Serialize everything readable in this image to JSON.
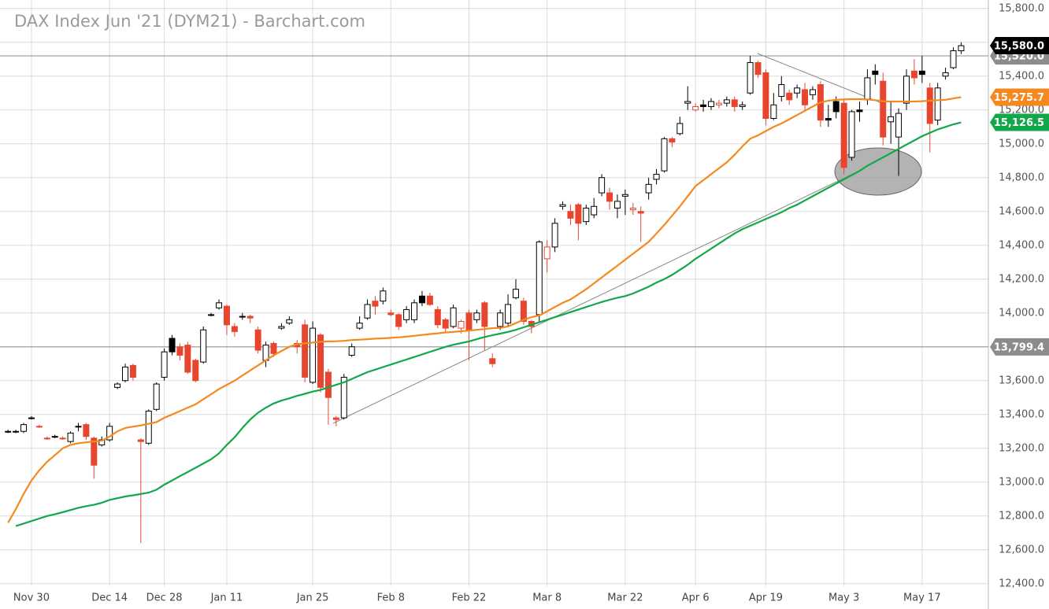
{
  "chart_data": {
    "type": "candlestick",
    "title": "DAX Index Jun '21 (DYM21) - Barchart.com",
    "categories": [
      null,
      null,
      null,
      "Nov 30",
      null,
      null,
      null,
      null,
      null,
      null,
      null,
      null,
      null,
      "Dec 14",
      null,
      null,
      null,
      null,
      null,
      null,
      "Dec 28",
      null,
      null,
      null,
      null,
      null,
      null,
      null,
      "Jan 11",
      null,
      null,
      null,
      null,
      null,
      null,
      null,
      null,
      null,
      null,
      "Jan 25",
      null,
      null,
      null,
      null,
      null,
      null,
      null,
      null,
      null,
      "Feb 8",
      null,
      null,
      null,
      null,
      null,
      null,
      null,
      null,
      null,
      "Feb 22",
      null,
      null,
      null,
      null,
      null,
      null,
      null,
      null,
      null,
      "Mar 8",
      null,
      null,
      null,
      null,
      null,
      null,
      null,
      null,
      null,
      "Mar 22",
      null,
      null,
      null,
      null,
      null,
      null,
      null,
      null,
      "Apr 6",
      null,
      null,
      null,
      null,
      null,
      null,
      null,
      null,
      "Apr 19",
      null,
      null,
      null,
      null,
      null,
      null,
      null,
      null,
      null,
      "May 3",
      null,
      null,
      null,
      null,
      null,
      null,
      null,
      null,
      null,
      "May 17",
      null,
      null,
      null,
      null,
      null
    ],
    "open": [
      13300,
      13300,
      13300,
      13380,
      13330,
      13260,
      13270,
      13260,
      13240,
      13330,
      13340,
      13260,
      13220,
      13250,
      13560,
      13600,
      13690,
      13250,
      13230,
      13430,
      13620,
      13850,
      13800,
      13810,
      13720,
      13710,
      13990,
      14030,
      14040,
      13920,
      13980,
      13980,
      13900,
      13720,
      13820,
      13910,
      13940,
      13820,
      13930,
      13590,
      13870,
      13650,
      13380,
      13380,
      13750,
      13910,
      13970,
      14070,
      14070,
      14000,
      13990,
      13960,
      13960,
      14100,
      14100,
      14020,
      13960,
      13920,
      13910,
      14000,
      13960,
      14060,
      13730,
      13920,
      13940,
      14090,
      14070,
      13950,
      13990,
      14320,
      14390,
      14630,
      14600,
      14640,
      14540,
      14580,
      14710,
      14710,
      14620,
      14690,
      14610,
      14600,
      14710,
      14790,
      14840,
      15030,
      15060,
      15240,
      15200,
      15230,
      15220,
      15230,
      15240,
      15260,
      15220,
      15300,
      15480,
      15420,
      15150,
      15280,
      15300,
      15300,
      15320,
      15290,
      15350,
      15150,
      15250,
      15240,
      14920,
      15200,
      15260,
      15430,
      15370,
      15130,
      15040,
      15240,
      15430,
      15430,
      15330,
      15140,
      15400,
      15450,
      15550
    ],
    "high": [
      13310,
      13310,
      13350,
      13390,
      13340,
      13270,
      13280,
      13270,
      13300,
      13350,
      13350,
      13270,
      13270,
      13350,
      13590,
      13700,
      13700,
      13260,
      13430,
      13590,
      13790,
      13870,
      13820,
      13830,
      13730,
      13920,
      14000,
      14080,
      14050,
      13940,
      14000,
      13990,
      13920,
      13830,
      13830,
      13940,
      13980,
      13840,
      13960,
      13950,
      13880,
      13670,
      13390,
      13640,
      13820,
      13980,
      14080,
      14100,
      14150,
      14020,
      14000,
      14040,
      14080,
      14130,
      14120,
      14040,
      13970,
      14050,
      13960,
      14020,
      14020,
      14070,
      13760,
      14020,
      14110,
      14200,
      14090,
      13960,
      14430,
      14430,
      14560,
      14660,
      14640,
      14650,
      14640,
      14680,
      14820,
      14740,
      14700,
      14730,
      14650,
      14630,
      14800,
      14850,
      15040,
      15040,
      15160,
      15340,
      15240,
      15260,
      15270,
      15260,
      15280,
      15280,
      15250,
      15520,
      15490,
      15440,
      15300,
      15400,
      15320,
      15350,
      15360,
      15340,
      15370,
      15230,
      15280,
      15260,
      15200,
      15250,
      15440,
      15470,
      15420,
      15250,
      15210,
      15440,
      15500,
      15520,
      15360,
      15360,
      15450,
      15570,
      15600
    ],
    "low": [
      13290,
      13290,
      13290,
      13370,
      13320,
      13250,
      13260,
      13250,
      13230,
      13300,
      13250,
      13020,
      13210,
      13240,
      13550,
      13590,
      13600,
      12640,
      13220,
      13420,
      13600,
      13750,
      13720,
      13640,
      13590,
      13700,
      13980,
      14020,
      13870,
      13860,
      13960,
      13940,
      13760,
      13680,
      13740,
      13900,
      13930,
      13760,
      13590,
      13580,
      13530,
      13340,
      13330,
      13370,
      13740,
      13900,
      13960,
      13990,
      14050,
      13980,
      13900,
      13940,
      13940,
      14040,
      14040,
      13910,
      13890,
      13910,
      13880,
      13720,
      13940,
      13780,
      13680,
      13900,
      13920,
      14080,
      13930,
      13880,
      13950,
      14240,
      14360,
      14610,
      14520,
      14430,
      14520,
      14560,
      14690,
      14610,
      14560,
      14580,
      14580,
      14420,
      14670,
      14760,
      14830,
      14980,
      15050,
      15200,
      15190,
      15190,
      15200,
      15210,
      15220,
      15190,
      15200,
      15290,
      15390,
      15110,
      15140,
      15250,
      15230,
      15270,
      15200,
      15260,
      15100,
      15100,
      15150,
      14820,
      14900,
      15130,
      15230,
      15350,
      14990,
      15000,
      14810,
      15200,
      15350,
      15360,
      14950,
      15110,
      15380,
      15440,
      15530
    ],
    "close": [
      13300,
      13300,
      13340,
      13380,
      13330,
      13260,
      13270,
      13260,
      13290,
      13330,
      13270,
      13100,
      13250,
      13330,
      13580,
      13680,
      13620,
      13240,
      13420,
      13580,
      13770,
      13770,
      13750,
      13650,
      13600,
      13900,
      13990,
      14060,
      13930,
      13890,
      13980,
      13970,
      13780,
      13810,
      13760,
      13920,
      13960,
      13800,
      13620,
      13910,
      13560,
      13500,
      13370,
      13620,
      13800,
      13940,
      14050,
      14040,
      14130,
      13990,
      13920,
      14020,
      14060,
      14060,
      14050,
      13930,
      13910,
      14030,
      13950,
      13900,
      14000,
      13920,
      13700,
      14000,
      14050,
      14140,
      13950,
      13920,
      14420,
      14390,
      14530,
      14640,
      14560,
      14530,
      14620,
      14630,
      14800,
      14660,
      14660,
      14700,
      14620,
      14590,
      14760,
      14820,
      15030,
      15010,
      15120,
      15250,
      15220,
      15220,
      15250,
      15240,
      15260,
      15220,
      15230,
      15480,
      15410,
      15150,
      15230,
      15350,
      15260,
      15330,
      15230,
      15320,
      15140,
      15140,
      15190,
      14860,
      15190,
      15190,
      15390,
      15410,
      15040,
      15160,
      15180,
      15400,
      15390,
      15410,
      15120,
      15330,
      15420,
      15550,
      15580
    ],
    "up_color": "#000000",
    "down_color": "#e8452f",
    "series": [
      {
        "color": "#f5891f",
        "values": [
          12760,
          12840,
          12930,
          13010,
          13070,
          13120,
          13160,
          13200,
          13220,
          13230,
          13235,
          13240,
          13245,
          13270,
          13300,
          13320,
          13328,
          13335,
          13345,
          13355,
          13380,
          13400,
          13420,
          13440,
          13460,
          13490,
          13520,
          13550,
          13575,
          13600,
          13630,
          13660,
          13690,
          13720,
          13750,
          13775,
          13800,
          13815,
          13820,
          13825,
          13830,
          13832,
          13833,
          13835,
          13840,
          13842,
          13845,
          13848,
          13850,
          13853,
          13856,
          13860,
          13865,
          13870,
          13875,
          13880,
          13885,
          13888,
          13892,
          13896,
          13900,
          13905,
          13910,
          13912,
          13920,
          13940,
          13960,
          13975,
          13985,
          14010,
          14035,
          14060,
          14080,
          14110,
          14140,
          14175,
          14210,
          14245,
          14280,
          14315,
          14350,
          14385,
          14420,
          14470,
          14520,
          14575,
          14630,
          14690,
          14750,
          14785,
          14820,
          14855,
          14890,
          14935,
          14985,
          15030,
          15050,
          15075,
          15100,
          15120,
          15145,
          15170,
          15195,
          15220,
          15245,
          15255,
          15260,
          15262,
          15264,
          15264,
          15262,
          15258,
          15252,
          15250,
          15250,
          15250,
          15250,
          15252,
          15255,
          15258,
          15260,
          15268,
          15275.7
        ]
      },
      {
        "color": "#12a84a",
        "values": [
          null,
          12740,
          12755,
          12770,
          12785,
          12800,
          12810,
          12822,
          12835,
          12848,
          12858,
          12866,
          12878,
          12895,
          12905,
          12915,
          12922,
          12930,
          12938,
          12955,
          12985,
          13010,
          13035,
          13060,
          13085,
          13110,
          13135,
          13170,
          13220,
          13265,
          13320,
          13370,
          13410,
          13440,
          13465,
          13482,
          13495,
          13510,
          13522,
          13535,
          13545,
          13560,
          13575,
          13590,
          13610,
          13630,
          13650,
          13665,
          13680,
          13695,
          13710,
          13725,
          13740,
          13755,
          13770,
          13785,
          13800,
          13812,
          13822,
          13832,
          13845,
          13858,
          13868,
          13878,
          13888,
          13900,
          13915,
          13930,
          13945,
          13960,
          13975,
          13990,
          14005,
          14020,
          14035,
          14050,
          14065,
          14078,
          14090,
          14100,
          14115,
          14135,
          14155,
          14180,
          14200,
          14225,
          14255,
          14285,
          14320,
          14350,
          14380,
          14410,
          14440,
          14470,
          14495,
          14515,
          14535,
          14555,
          14575,
          14595,
          14620,
          14640,
          14665,
          14690,
          14715,
          14740,
          14765,
          14790,
          14815,
          14840,
          14870,
          14895,
          14920,
          14945,
          14970,
          14995,
          15020,
          15045,
          15065,
          15085,
          15100,
          15115,
          15126.5
        ]
      }
    ],
    "price_labels": [
      {
        "value": 15520,
        "label": "15,520.0",
        "color": "#8c8c8c",
        "line": true
      },
      {
        "value": 15580,
        "label": "15,580.0",
        "color": "#000000",
        "line": false
      },
      {
        "value": 15275.7,
        "label": "15,275.7",
        "color": "#f5891f",
        "line": false
      },
      {
        "value": 15126.5,
        "label": "15,126.5",
        "color": "#12a84a",
        "line": false
      },
      {
        "value": 13799.4,
        "label": "13,799.4",
        "color": "#8c8c8c",
        "line": true
      }
    ],
    "ylim": [
      12250,
      15850
    ],
    "yticks": [
      {
        "value": 12400,
        "label": "12,400.0"
      },
      {
        "value": 12600,
        "label": "12,600.0"
      },
      {
        "value": 12800,
        "label": "12,800.0"
      },
      {
        "value": 13000,
        "label": "13,000.0"
      },
      {
        "value": 13200,
        "label": "13,200.0"
      },
      {
        "value": 13400,
        "label": "13,400.0"
      },
      {
        "value": 13600,
        "label": "13,600.0"
      },
      {
        "value": 13800,
        "label": "13,800.0"
      },
      {
        "value": 14000,
        "label": "14,000.0"
      },
      {
        "value": 14200,
        "label": "14,200.0"
      },
      {
        "value": 14400,
        "label": "14,400.0"
      },
      {
        "value": 14600,
        "label": "14,600.0"
      },
      {
        "value": 14800,
        "label": "14,800.0"
      },
      {
        "value": 15000,
        "label": "15,000.0"
      },
      {
        "value": 15200,
        "label": "15,200.0"
      },
      {
        "value": 15400,
        "label": "15,400.0"
      },
      {
        "value": 15600,
        "label": "15,600.0"
      },
      {
        "value": 15800,
        "label": "15,800.0"
      }
    ],
    "grid": true
  }
}
